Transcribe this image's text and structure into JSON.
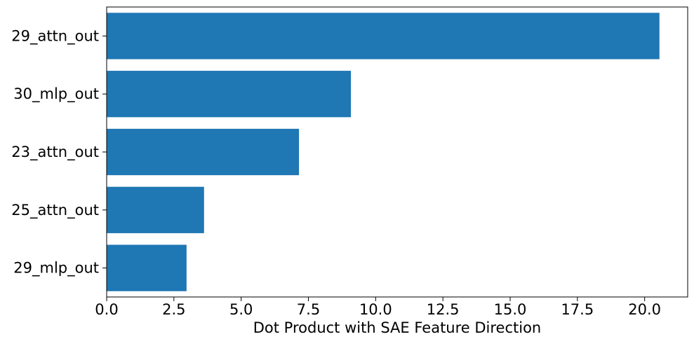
{
  "colors": {
    "bar": "#1f77b4",
    "axis": "#000000",
    "background": "#ffffff"
  },
  "chart_data": {
    "type": "bar",
    "orientation": "horizontal",
    "categories": [
      "29_attn_out",
      "30_mlp_out",
      "23_attn_out",
      "25_attn_out",
      "29_mlp_out"
    ],
    "values": [
      20.55,
      9.08,
      7.15,
      3.62,
      2.97
    ],
    "xlabel": "Dot Product with SAE Feature Direction",
    "ylabel": "",
    "xlim": [
      0,
      21.6
    ],
    "xticks": [
      0,
      2.5,
      5,
      7.5,
      10,
      12.5,
      15,
      17.5,
      20
    ],
    "xtick_labels": [
      "0.0",
      "2.5",
      "5.0",
      "7.5",
      "10.0",
      "12.5",
      "15.0",
      "17.5",
      "20.0"
    ],
    "grid": false,
    "legend": "none"
  }
}
